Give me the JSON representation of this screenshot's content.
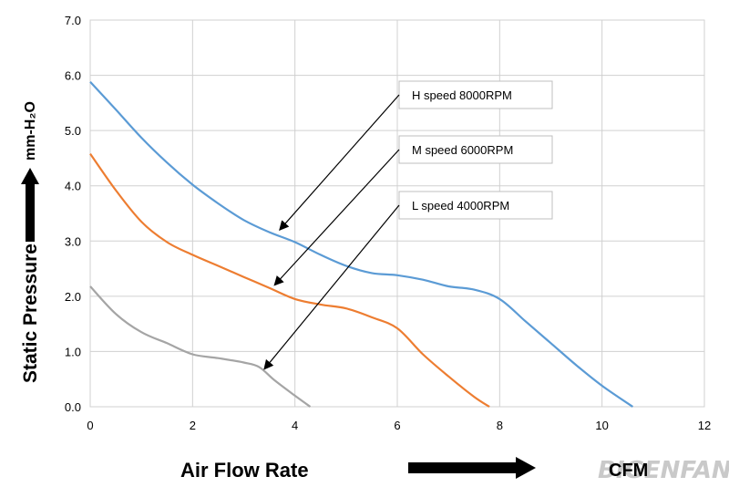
{
  "chart_data": {
    "type": "line",
    "xlabel": "Air  Flow  Rate",
    "xunit": "CFM",
    "ylabel": "Static   Pressure",
    "yunit": "mm-H₂O",
    "xlim": [
      0,
      12
    ],
    "ylim": [
      0,
      7
    ],
    "x_ticks": [
      "0",
      "2",
      "4",
      "6",
      "8",
      "10",
      "12"
    ],
    "y_ticks": [
      "0.0",
      "1.0",
      "2.0",
      "3.0",
      "4.0",
      "5.0",
      "6.0",
      "7.0"
    ],
    "grid": true,
    "series": [
      {
        "name": "H  speed  8000RPM",
        "color": "#5b9bd5",
        "points": [
          [
            0,
            5.88
          ],
          [
            0.5,
            5.38
          ],
          [
            1,
            4.87
          ],
          [
            1.5,
            4.42
          ],
          [
            2,
            4.02
          ],
          [
            2.5,
            3.68
          ],
          [
            3,
            3.38
          ],
          [
            3.5,
            3.16
          ],
          [
            4,
            2.98
          ],
          [
            4.5,
            2.75
          ],
          [
            5,
            2.55
          ],
          [
            5.5,
            2.42
          ],
          [
            6,
            2.38
          ],
          [
            6.5,
            2.3
          ],
          [
            7,
            2.18
          ],
          [
            7.5,
            2.12
          ],
          [
            8,
            1.95
          ],
          [
            8.5,
            1.55
          ],
          [
            9,
            1.15
          ],
          [
            9.5,
            0.75
          ],
          [
            10,
            0.38
          ],
          [
            10.6,
            0.0
          ]
        ]
      },
      {
        "name": "M  speed  6000RPM",
        "color": "#ed7d31",
        "points": [
          [
            0,
            4.58
          ],
          [
            0.5,
            3.92
          ],
          [
            1,
            3.35
          ],
          [
            1.5,
            2.98
          ],
          [
            2,
            2.75
          ],
          [
            2.5,
            2.55
          ],
          [
            3,
            2.35
          ],
          [
            3.5,
            2.15
          ],
          [
            4,
            1.95
          ],
          [
            4.5,
            1.85
          ],
          [
            5,
            1.78
          ],
          [
            5.5,
            1.62
          ],
          [
            6,
            1.42
          ],
          [
            6.5,
            0.95
          ],
          [
            7,
            0.55
          ],
          [
            7.5,
            0.18
          ],
          [
            7.8,
            0.0
          ]
        ]
      },
      {
        "name": "L  speed  4000RPM",
        "color": "#a5a5a5",
        "points": [
          [
            0,
            2.18
          ],
          [
            0.5,
            1.68
          ],
          [
            1,
            1.35
          ],
          [
            1.5,
            1.15
          ],
          [
            2,
            0.95
          ],
          [
            2.5,
            0.88
          ],
          [
            3,
            0.8
          ],
          [
            3.3,
            0.72
          ],
          [
            3.6,
            0.48
          ],
          [
            4,
            0.2
          ],
          [
            4.3,
            0.0
          ]
        ]
      }
    ],
    "annotations": [
      {
        "text": "H  speed  8000RPM",
        "arrow_to": [
          3.7,
          3.2
        ]
      },
      {
        "text": "M  speed  6000RPM",
        "arrow_to": [
          3.6,
          2.2
        ]
      },
      {
        "text": "L  speed  4000RPM",
        "arrow_to": [
          3.4,
          0.68
        ]
      }
    ]
  },
  "watermark": "BIGENFAN"
}
